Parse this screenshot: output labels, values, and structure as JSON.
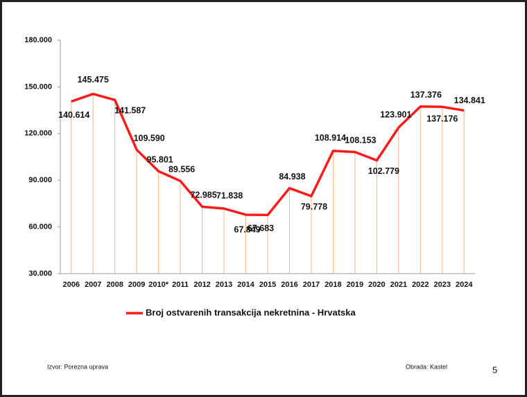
{
  "chart_data": {
    "type": "line",
    "categories": [
      "2006",
      "2007",
      "2008",
      "2009",
      "2010*",
      "2011",
      "2012",
      "2013",
      "2014",
      "2015",
      "2016",
      "2017",
      "2018",
      "2019",
      "2020",
      "2021",
      "2022",
      "2023",
      "2024"
    ],
    "series": [
      {
        "name": "Broj ostvarenih transakcija nekretnina - Hrvatska",
        "color": "#ff1a1a",
        "values": [
          140614,
          145475,
          141587,
          109590,
          95801,
          89556,
          72985,
          71838,
          67849,
          67683,
          84938,
          79778,
          108914,
          108153,
          102779,
          123901,
          137376,
          137176,
          134841
        ],
        "value_labels": [
          "140.614",
          "145.475",
          "141.587",
          "109.590",
          "95.801",
          "89.556",
          "72.985",
          "71.838",
          "67.849",
          "67.683",
          "84.938",
          "79.778",
          "108.914",
          "108.153",
          "102.779",
          "123.901",
          "137.376",
          "137.176",
          "134.841"
        ]
      }
    ],
    "drop_line_color": "#f4b183",
    "ylim": [
      30000,
      180000
    ],
    "yticks": [
      {
        "value": 30000,
        "label": "30.000"
      },
      {
        "value": 60000,
        "label": "60.000"
      },
      {
        "value": 90000,
        "label": "90.000"
      },
      {
        "value": 120000,
        "label": "120.000"
      },
      {
        "value": 150000,
        "label": "150.000"
      },
      {
        "value": 180000,
        "label": "180.000"
      }
    ],
    "grid": false,
    "legend": "bottom",
    "source_note": "Izvor: Porezna uprava",
    "credit_note": "Obrada: Kastel",
    "slide_number": "5"
  }
}
